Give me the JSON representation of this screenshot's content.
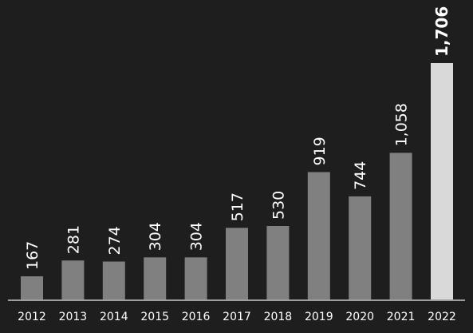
{
  "chart_data": {
    "type": "bar",
    "title": "",
    "xlabel": "",
    "ylabel": "",
    "categories": [
      "2012",
      "2013",
      "2014",
      "2015",
      "2016",
      "2017",
      "2018",
      "2019",
      "2020",
      "2021",
      "2022"
    ],
    "values": [
      167,
      281,
      274,
      304,
      304,
      517,
      530,
      919,
      744,
      1058,
      1706
    ],
    "value_labels": [
      "167",
      "281",
      "274",
      "304",
      "304",
      "517",
      "530",
      "919",
      "744",
      "1,058",
      "1,706"
    ],
    "highlight_index": 10,
    "ylim": [
      0,
      1706
    ],
    "grid": false,
    "legend": "none",
    "colors": {
      "background": "#1e1e1e",
      "bar": "#808080",
      "highlight_bar": "#d9d9d9",
      "text": "#ffffff",
      "axis": "#c8c8c8"
    }
  }
}
